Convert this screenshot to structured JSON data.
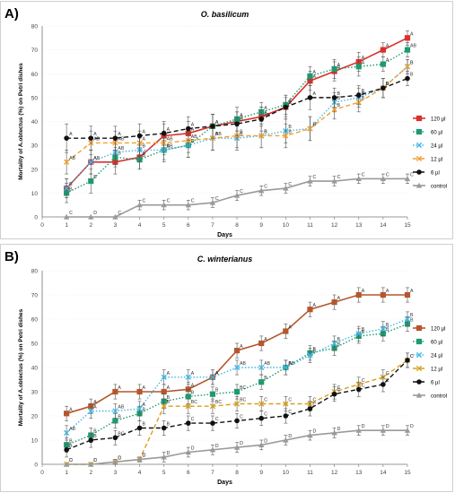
{
  "chart_data": [
    {
      "type": "line",
      "panel_label": "A)",
      "title": "O. basilicum",
      "xlabel": "Days",
      "ylabel": "Mortality of A.obtectus (%) on Petri dishes",
      "xlim": [
        0,
        15
      ],
      "ylim": [
        0,
        80
      ],
      "x_ticks": [
        0,
        1,
        2,
        3,
        4,
        5,
        6,
        7,
        8,
        9,
        10,
        11,
        12,
        13,
        14,
        15
      ],
      "y_ticks": [
        0,
        10,
        20,
        30,
        40,
        50,
        60,
        70,
        80
      ],
      "x": [
        1,
        2,
        3,
        4,
        5,
        6,
        7,
        8,
        9,
        10,
        11,
        12,
        13,
        14,
        15
      ],
      "legend_position": "right",
      "series": [
        {
          "name": "120 µl",
          "color": "#d9312b",
          "dash": "solid",
          "marker": "square",
          "values": [
            12,
            23,
            23,
            25,
            34,
            35,
            38,
            40,
            42,
            46,
            57,
            61,
            65,
            70,
            75
          ],
          "errors": [
            4,
            5,
            5,
            5,
            5,
            5,
            5,
            4,
            4,
            4,
            4,
            4,
            4,
            3,
            3
          ],
          "letters": [
            "",
            "A",
            "",
            "A",
            "",
            "A",
            "",
            "A",
            "A",
            "A",
            "A",
            "A",
            "A",
            "A",
            "A"
          ]
        },
        {
          "name": "60 µl",
          "color": "#1e9a6e",
          "dash": "dotted",
          "marker": "square",
          "values": [
            10,
            15,
            25,
            24,
            28,
            30,
            38,
            41,
            44,
            47,
            59,
            62,
            63,
            64,
            70
          ],
          "errors": [
            4,
            5,
            4,
            4,
            4,
            5,
            5,
            5,
            4,
            4,
            4,
            4,
            4,
            3,
            3
          ],
          "letters": [
            "B",
            "B",
            "B",
            "B",
            "B",
            "B",
            "A",
            "A",
            "A",
            "A",
            "A",
            "A",
            "A",
            "A",
            "AB"
          ]
        },
        {
          "name": "24 µl",
          "color": "#3fb6e5",
          "dash": "dotted",
          "marker": "x",
          "values": [
            12,
            23,
            27,
            28,
            28,
            30,
            33,
            33,
            34,
            36,
            37,
            48,
            50,
            54,
            63
          ],
          "errors": [
            4,
            5,
            5,
            5,
            5,
            5,
            5,
            5,
            5,
            5,
            5,
            4,
            4,
            4,
            3
          ],
          "letters": [
            "B",
            "AB",
            "AB",
            "B",
            "AB",
            "B",
            "B",
            "B",
            "B",
            "B",
            "B",
            "B",
            "B",
            "B",
            "B"
          ]
        },
        {
          "name": "12 µl",
          "color": "#f0a030",
          "dash": "dashed",
          "marker": "x",
          "values": [
            23,
            31,
            31,
            31,
            31,
            32,
            33,
            34,
            34,
            34,
            37,
            45,
            48,
            54,
            63
          ],
          "errors": [
            5,
            5,
            5,
            5,
            5,
            5,
            5,
            5,
            5,
            5,
            5,
            4,
            4,
            4,
            3
          ],
          "letters": [
            "AB",
            "AB",
            "AB",
            "A",
            "AB",
            "AB",
            "AB",
            "B",
            "B",
            "B",
            "B",
            "B",
            "B",
            "B",
            "B"
          ]
        },
        {
          "name": "6 µl",
          "color": "#111111",
          "dash": "dashed",
          "marker": "circle",
          "values": [
            33,
            33,
            33,
            34,
            35,
            37,
            38,
            39,
            41,
            46,
            50,
            50,
            51,
            54,
            58
          ],
          "errors": [
            6,
            5,
            5,
            5,
            5,
            5,
            5,
            5,
            5,
            5,
            5,
            4,
            4,
            4,
            3
          ],
          "letters": [
            "A",
            "A",
            "A",
            "A",
            "A",
            "A",
            "A",
            "B",
            "AB",
            "A",
            "A",
            "B",
            "B",
            "B",
            "B"
          ]
        },
        {
          "name": "control",
          "color": "#9a9a9a",
          "dash": "solid",
          "marker": "triangle",
          "values": [
            0,
            0,
            0,
            5,
            5,
            5,
            6,
            9,
            11,
            12,
            15,
            15,
            16,
            16,
            16
          ],
          "errors": [
            0,
            0,
            0,
            2,
            2,
            2,
            2,
            2,
            2,
            2,
            2,
            2,
            2,
            2,
            2
          ],
          "letters": [
            "C",
            "D",
            "C",
            "C",
            "C",
            "C",
            "C",
            "C",
            "C",
            "C",
            "C",
            "C",
            "C",
            "C",
            "C"
          ]
        }
      ]
    },
    {
      "type": "line",
      "panel_label": "B)",
      "title": "C. winterianus",
      "xlabel": "Days",
      "ylabel": "Mortality of A.obtectus (%) on Petri dishes",
      "xlim": [
        0,
        15
      ],
      "ylim": [
        0,
        80
      ],
      "x_ticks": [
        0,
        1,
        2,
        3,
        4,
        5,
        6,
        7,
        8,
        9,
        10,
        11,
        12,
        13,
        14,
        15
      ],
      "y_ticks": [
        0,
        10,
        20,
        30,
        40,
        50,
        60,
        70,
        80
      ],
      "x": [
        1,
        2,
        3,
        4,
        5,
        6,
        7,
        8,
        9,
        10,
        11,
        12,
        13,
        14,
        15
      ],
      "legend_position": "right",
      "series": [
        {
          "name": "120 µl",
          "color": "#b5572d",
          "dash": "solid",
          "marker": "square",
          "values": [
            21,
            24,
            30,
            30,
            30,
            31,
            36,
            47,
            50,
            55,
            64,
            67,
            70,
            70,
            70
          ],
          "errors": [
            3,
            3,
            3,
            3,
            3,
            3,
            3,
            3,
            3,
            3,
            3,
            3,
            3,
            3,
            3
          ],
          "letters": [
            "A",
            "A",
            "A",
            "A",
            "A",
            "A",
            "A",
            "A",
            "A",
            "A",
            "A",
            "A",
            "A",
            "A",
            "A"
          ]
        },
        {
          "name": "60 µl",
          "color": "#1e9a6e",
          "dash": "dotted",
          "marker": "square",
          "values": [
            8,
            12,
            18,
            21,
            26,
            28,
            29,
            30,
            34,
            40,
            46,
            48,
            53,
            54,
            58
          ],
          "errors": [
            3,
            3,
            3,
            3,
            3,
            3,
            3,
            3,
            3,
            3,
            3,
            3,
            3,
            3,
            3
          ],
          "letters": [
            "B",
            "B",
            "B",
            "B",
            "B",
            "B",
            "B",
            "BC",
            "B",
            "B",
            "B",
            "B",
            "B",
            "B",
            "B"
          ]
        },
        {
          "name": "24 µl",
          "color": "#3fb6e5",
          "dash": "dotted",
          "marker": "x",
          "values": [
            13,
            22,
            22,
            23,
            36,
            36,
            36,
            40,
            40,
            40,
            45,
            50,
            54,
            56,
            60
          ],
          "errors": [
            3,
            3,
            3,
            3,
            3,
            3,
            3,
            3,
            3,
            3,
            3,
            3,
            3,
            3,
            3
          ],
          "letters": [
            "AB",
            "A",
            "AB",
            "A",
            "A",
            "A",
            "A",
            "AB",
            "AB",
            "AB",
            "B",
            "B",
            "B",
            "B",
            "B"
          ]
        },
        {
          "name": "12 µl",
          "color": "#d6a020",
          "dash": "dashed",
          "marker": "x",
          "values": [
            0,
            0,
            1,
            2,
            24,
            24,
            24,
            25,
            25,
            25,
            25,
            30,
            33,
            36,
            43
          ],
          "errors": [
            0,
            0,
            1,
            1,
            3,
            3,
            3,
            3,
            3,
            3,
            3,
            3,
            3,
            3,
            3
          ],
          "letters": [
            "C",
            "C",
            "C",
            "C",
            "B",
            "BC",
            "BC",
            "BC",
            "C",
            "C",
            "C",
            "C",
            "C",
            "C",
            "C"
          ]
        },
        {
          "name": "6 µl",
          "color": "#111111",
          "dash": "dashed",
          "marker": "circle",
          "values": [
            6,
            10,
            11,
            15,
            15,
            17,
            17,
            18,
            19,
            20,
            23,
            29,
            31,
            33,
            43
          ],
          "errors": [
            3,
            3,
            3,
            3,
            3,
            3,
            3,
            3,
            3,
            3,
            3,
            3,
            3,
            3,
            3
          ],
          "letters": [
            "B",
            "B",
            "BC",
            "B",
            "B",
            "C",
            "C",
            "C",
            "C",
            "C",
            "C",
            "C",
            "C",
            "C",
            "C"
          ]
        },
        {
          "name": "control",
          "color": "#9a9a9a",
          "dash": "solid",
          "marker": "triangle",
          "values": [
            0,
            0,
            1,
            2,
            3,
            5,
            6,
            7,
            8,
            10,
            12,
            13,
            14,
            14,
            14
          ],
          "errors": [
            0,
            0,
            1,
            1,
            2,
            2,
            2,
            2,
            2,
            2,
            2,
            2,
            2,
            2,
            2
          ],
          "letters": [
            "D",
            "D",
            "D",
            "D",
            "D",
            "D",
            "D",
            "D",
            "D",
            "D",
            "D",
            "D",
            "D",
            "D",
            "D"
          ]
        }
      ]
    }
  ]
}
